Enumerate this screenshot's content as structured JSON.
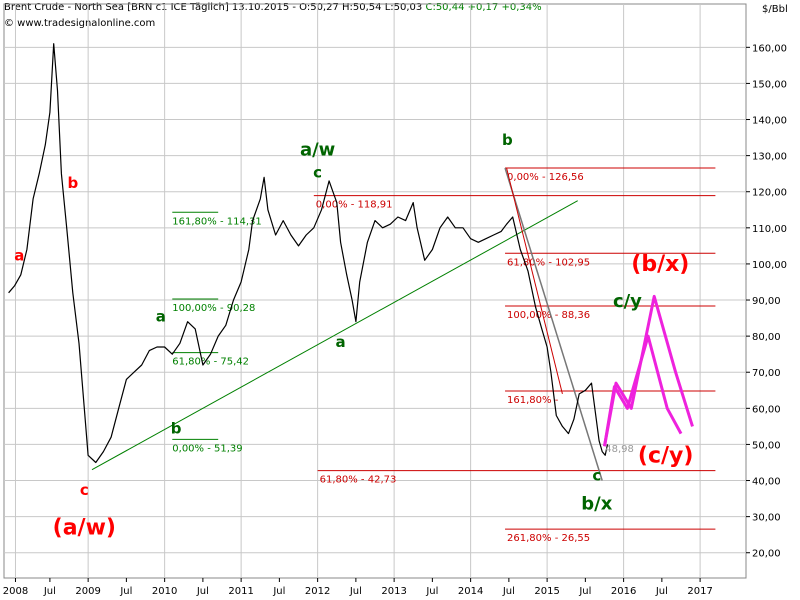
{
  "header": {
    "symbol": "Brent Crude - North Sea [BRN c1 ICE  Täglich] 13.10.2015 - O:50,27 H:50,54 L:50,03",
    "close_change": "C:50,44 +0,17 +0,34%",
    "watermark": "© www.tradesignalonline.com",
    "unit": "$/Bbl"
  },
  "colors": {
    "price": "#000000",
    "trend": "#008000",
    "fib": "#cc0000",
    "fib_green": "#008000",
    "projection": "#ee22dd",
    "grid": "#c8c8c8"
  },
  "chart_data": {
    "type": "line",
    "title": "Brent Crude - North Sea",
    "xlabel": "",
    "ylabel": "$/Bbl",
    "ylim": [
      13,
      172
    ],
    "xlim": [
      2007.9,
      2017.6
    ],
    "grid": true,
    "y_ticks": [
      "20,00",
      "30,00",
      "40,00",
      "50,00",
      "60,00",
      "70,00",
      "80,00",
      "90,00",
      "100,00",
      "110,00",
      "120,00",
      "130,00",
      "140,00",
      "150,00",
      "160,00"
    ],
    "x_ticks": [
      {
        "x": 2008.05,
        "label": "2008"
      },
      {
        "x": 2008.5,
        "label": "Jul"
      },
      {
        "x": 2009.0,
        "label": "2009"
      },
      {
        "x": 2009.5,
        "label": "Jul"
      },
      {
        "x": 2010.0,
        "label": "2010"
      },
      {
        "x": 2010.5,
        "label": "Jul"
      },
      {
        "x": 2011.0,
        "label": "2011"
      },
      {
        "x": 2011.5,
        "label": "Jul"
      },
      {
        "x": 2012.0,
        "label": "2012"
      },
      {
        "x": 2012.5,
        "label": "Jul"
      },
      {
        "x": 2013.0,
        "label": "2013"
      },
      {
        "x": 2013.5,
        "label": "Jul"
      },
      {
        "x": 2014.0,
        "label": "2014"
      },
      {
        "x": 2014.5,
        "label": "Jul"
      },
      {
        "x": 2015.0,
        "label": "2015"
      },
      {
        "x": 2015.5,
        "label": "Jul"
      },
      {
        "x": 2016.0,
        "label": "2016"
      },
      {
        "x": 2016.5,
        "label": "Jul"
      },
      {
        "x": 2017.0,
        "label": "2017"
      }
    ],
    "series": [
      {
        "name": "Brent Crude",
        "x": [
          2007.96,
          2008.04,
          2008.12,
          2008.2,
          2008.28,
          2008.36,
          2008.44,
          2008.5,
          2008.55,
          2008.6,
          2008.65,
          2008.72,
          2008.8,
          2008.88,
          2008.95,
          2009.0,
          2009.1,
          2009.2,
          2009.3,
          2009.4,
          2009.5,
          2009.6,
          2009.7,
          2009.8,
          2009.9,
          2010.0,
          2010.1,
          2010.2,
          2010.3,
          2010.4,
          2010.5,
          2010.6,
          2010.7,
          2010.8,
          2010.9,
          2011.0,
          2011.1,
          2011.15,
          2011.25,
          2011.3,
          2011.35,
          2011.45,
          2011.55,
          2011.65,
          2011.75,
          2011.85,
          2011.95,
          2012.05,
          2012.15,
          2012.2,
          2012.25,
          2012.3,
          2012.38,
          2012.45,
          2012.5,
          2012.55,
          2012.65,
          2012.75,
          2012.85,
          2012.95,
          2013.05,
          2013.15,
          2013.25,
          2013.3,
          2013.4,
          2013.5,
          2013.6,
          2013.7,
          2013.8,
          2013.9,
          2014.0,
          2014.1,
          2014.2,
          2014.3,
          2014.4,
          2014.47,
          2014.55,
          2014.65,
          2014.75,
          2014.85,
          2014.93,
          2015.0,
          2015.05,
          2015.12,
          2015.2,
          2015.28,
          2015.35,
          2015.42,
          2015.5,
          2015.58,
          2015.63,
          2015.68,
          2015.72,
          2015.76,
          2015.79
        ],
        "values": [
          92,
          94,
          97,
          104,
          118,
          125,
          133,
          142,
          161,
          148,
          125,
          110,
          92,
          78,
          60,
          47,
          45,
          48,
          52,
          60,
          68,
          70,
          72,
          76,
          77,
          77,
          75,
          78,
          84,
          82,
          72,
          75,
          80,
          83,
          90,
          95,
          104,
          112,
          118,
          124,
          115,
          108,
          112,
          108,
          105,
          108,
          110,
          115,
          123,
          120,
          117,
          106,
          97,
          90,
          84,
          95,
          106,
          112,
          110,
          111,
          113,
          112,
          117,
          110,
          101,
          104,
          110,
          113,
          110,
          110,
          107,
          106,
          107,
          108,
          109,
          111,
          113,
          104,
          98,
          88,
          82,
          77,
          70,
          58,
          55,
          53,
          57,
          64,
          65,
          67,
          59,
          51,
          48,
          47,
          50
        ]
      }
    ],
    "projections": [
      {
        "name": "",
        "x": [
          2015.75,
          2015.88,
          2016.05,
          2016.32,
          2016.57,
          2016.75
        ],
        "values": [
          49.5,
          66,
          60,
          80,
          60,
          53
        ]
      },
      {
        "name": "",
        "x": [
          2015.75,
          2015.9,
          2016.1,
          2016.4,
          2016.68,
          2016.9
        ],
        "values": [
          49.5,
          67,
          60,
          91,
          70,
          55
        ]
      }
    ],
    "fib_levels": [
      {
        "label": "0,00% - 126,56",
        "value": 126.56
      },
      {
        "label": "0,00% - 118,91",
        "value": 118.91
      },
      {
        "label": "61,80% - 102,95",
        "value": 102.95
      },
      {
        "label": "100,00% - 88,36",
        "value": 88.36
      },
      {
        "label": "161,80% - ",
        "value": 64.8
      },
      {
        "label": "61,80% - 42,73",
        "value": 42.73
      },
      {
        "label": "261,80% - 26,55",
        "value": 26.55
      }
    ],
    "fib_green": [
      {
        "label": "161,80% - 114,31",
        "value": 114.31
      },
      {
        "label": "100,00% - 90,28",
        "value": 90.28
      },
      {
        "label": "61,80% - 75,42",
        "value": 75.42
      },
      {
        "label": "0,00% - 51,39",
        "value": 51.39
      }
    ],
    "price_marker": {
      "label": "48,98",
      "value": 48.98
    },
    "wave_labels": [
      {
        "text": "a",
        "x": 2008.1,
        "y": 101,
        "color": "red",
        "size": "small"
      },
      {
        "text": "b",
        "x": 2008.8,
        "y": 121,
        "color": "red",
        "size": "small"
      },
      {
        "text": "c",
        "x": 2008.95,
        "y": 36,
        "color": "red",
        "size": "small"
      },
      {
        "text": "(a/w)",
        "x": 2008.95,
        "y": 25,
        "color": "red",
        "size": "big"
      },
      {
        "text": "a",
        "x": 2009.95,
        "y": 84,
        "color": "green",
        "size": "small"
      },
      {
        "text": "b",
        "x": 2010.15,
        "y": 53,
        "color": "green",
        "size": "small"
      },
      {
        "text": "c",
        "x": 2012.0,
        "y": 124,
        "color": "green",
        "size": "small"
      },
      {
        "text": "a/w",
        "x": 2012.0,
        "y": 130,
        "color": "green",
        "size": "mid"
      },
      {
        "text": "a",
        "x": 2012.3,
        "y": 77,
        "color": "green",
        "size": "small"
      },
      {
        "text": "b",
        "x": 2014.48,
        "y": 133,
        "color": "green",
        "size": "small"
      },
      {
        "text": "c",
        "x": 2015.65,
        "y": 40,
        "color": "green",
        "size": "small"
      },
      {
        "text": "b/x",
        "x": 2015.65,
        "y": 32,
        "color": "green",
        "size": "mid"
      },
      {
        "text": "c/y",
        "x": 2016.05,
        "y": 88,
        "color": "green",
        "size": "mid"
      },
      {
        "text": "(b/x)",
        "x": 2016.48,
        "y": 98,
        "color": "red",
        "size": "big"
      },
      {
        "text": "(c/y)",
        "x": 2016.55,
        "y": 45,
        "color": "red",
        "size": "big"
      }
    ]
  }
}
